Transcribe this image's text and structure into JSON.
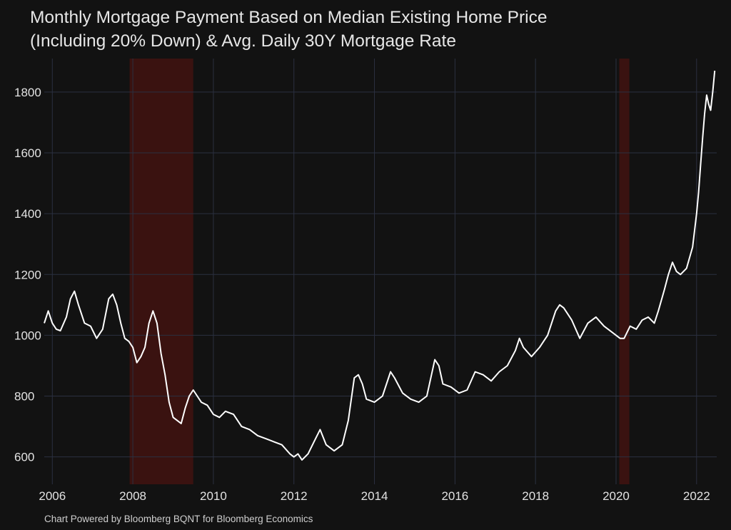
{
  "chart_data": {
    "type": "line",
    "title_line1": "Monthly Mortgage Payment Based on Median Existing Home Price",
    "title_line2": "(Including 20% Down) & Avg. Daily 30Y Mortgage Rate",
    "xlabel": "",
    "ylabel": "",
    "xlim": [
      2005.8,
      2022.5
    ],
    "ylim": [
      510,
      1910
    ],
    "x_ticks": [
      2006,
      2008,
      2010,
      2012,
      2014,
      2016,
      2018,
      2020,
      2022
    ],
    "y_ticks": [
      600,
      800,
      1000,
      1200,
      1400,
      1600,
      1800
    ],
    "grid": true,
    "colors": {
      "background": "#121212",
      "line": "#ffffff",
      "grid": "#2b3040",
      "recession": "#3a1210"
    },
    "recession_bands": [
      {
        "start": 2007.92,
        "end": 2009.5
      },
      {
        "start": 2020.08,
        "end": 2020.33
      }
    ],
    "series": [
      {
        "x": [
          2005.8,
          2005.9,
          2006.0,
          2006.1,
          2006.2,
          2006.35,
          2006.45,
          2006.55,
          2006.65,
          2006.8,
          2006.95,
          2007.1,
          2007.25,
          2007.4,
          2007.5,
          2007.6,
          2007.7,
          2007.8,
          2007.9,
          2008.0,
          2008.1,
          2008.2,
          2008.3,
          2008.4,
          2008.5,
          2008.6,
          2008.7,
          2008.8,
          2008.9,
          2009.0,
          2009.1,
          2009.2,
          2009.3,
          2009.4,
          2009.5,
          2009.6,
          2009.7,
          2009.85,
          2010.0,
          2010.15,
          2010.3,
          2010.5,
          2010.7,
          2010.9,
          2011.1,
          2011.3,
          2011.5,
          2011.7,
          2011.9,
          2012.0,
          2012.1,
          2012.2,
          2012.35,
          2012.5,
          2012.65,
          2012.8,
          2013.0,
          2013.2,
          2013.35,
          2013.5,
          2013.6,
          2013.7,
          2013.8,
          2014.0,
          2014.2,
          2014.4,
          2014.5,
          2014.7,
          2014.9,
          2015.1,
          2015.3,
          2015.5,
          2015.6,
          2015.7,
          2015.9,
          2016.1,
          2016.3,
          2016.5,
          2016.7,
          2016.9,
          2017.1,
          2017.3,
          2017.5,
          2017.6,
          2017.7,
          2017.9,
          2018.1,
          2018.3,
          2018.5,
          2018.6,
          2018.7,
          2018.9,
          2019.1,
          2019.3,
          2019.5,
          2019.7,
          2019.9,
          2020.1,
          2020.2,
          2020.35,
          2020.5,
          2020.65,
          2020.8,
          2020.95,
          2021.05,
          2021.2,
          2021.3,
          2021.4,
          2021.5,
          2021.6,
          2021.75,
          2021.9,
          2022.0,
          2022.05,
          2022.1,
          2022.15,
          2022.2,
          2022.25,
          2022.3,
          2022.35,
          2022.4,
          2022.45
        ],
        "y": [
          1040,
          1080,
          1040,
          1020,
          1015,
          1060,
          1120,
          1145,
          1100,
          1040,
          1030,
          990,
          1020,
          1120,
          1135,
          1100,
          1040,
          990,
          980,
          960,
          910,
          930,
          960,
          1040,
          1080,
          1040,
          940,
          870,
          780,
          730,
          720,
          710,
          760,
          800,
          820,
          800,
          780,
          770,
          740,
          730,
          750,
          740,
          700,
          690,
          670,
          660,
          650,
          640,
          610,
          600,
          610,
          590,
          610,
          650,
          690,
          640,
          620,
          640,
          720,
          860,
          870,
          840,
          790,
          780,
          800,
          880,
          860,
          810,
          790,
          780,
          800,
          920,
          900,
          840,
          830,
          810,
          820,
          880,
          870,
          850,
          880,
          900,
          950,
          990,
          960,
          930,
          960,
          1000,
          1080,
          1100,
          1090,
          1050,
          990,
          1040,
          1060,
          1030,
          1010,
          990,
          990,
          1030,
          1020,
          1050,
          1060,
          1040,
          1080,
          1150,
          1200,
          1240,
          1210,
          1200,
          1220,
          1290,
          1400,
          1470,
          1560,
          1650,
          1730,
          1790,
          1760,
          1740,
          1800,
          1870
        ]
      }
    ]
  },
  "footer": "Chart Powered by Bloomberg BQNT for Bloomberg Economics"
}
